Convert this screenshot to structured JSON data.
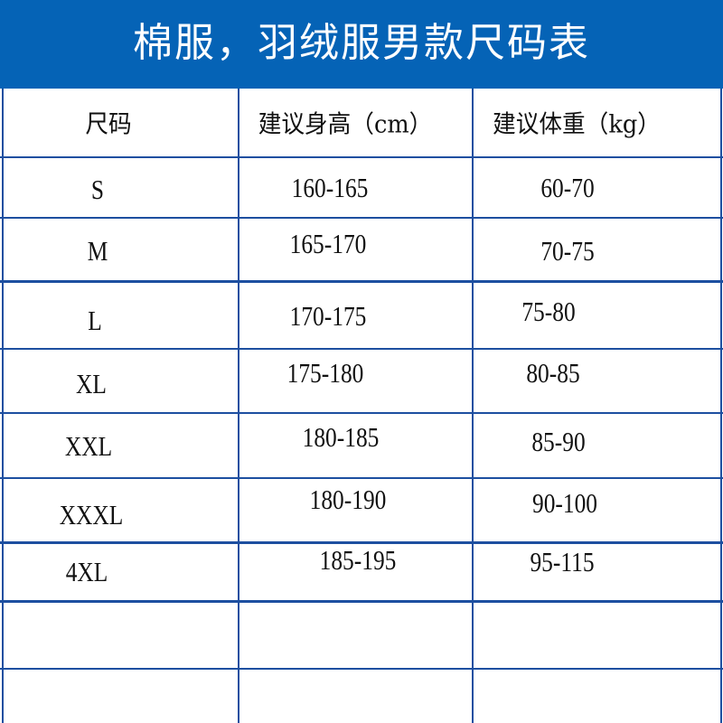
{
  "title": "棉服，羽绒服男款尺码表",
  "headers": [
    "尺码",
    "建议身高（cm）",
    "建议体重（kg）"
  ],
  "rows": [
    [
      "S",
      "160-165",
      "60-70"
    ],
    [
      "M",
      "165-170",
      "70-75"
    ],
    [
      "L",
      "170-175",
      "75-80"
    ],
    [
      "XL",
      "175-180",
      "80-85"
    ],
    [
      "XXL",
      "180-185",
      "85-90"
    ],
    [
      "XXXL",
      "180-190",
      "90-100"
    ],
    [
      "4XL",
      "185-195",
      "95-115"
    ],
    [
      "",
      "",
      ""
    ],
    [
      "",
      "",
      ""
    ]
  ],
  "colors": {
    "banner": "#0563b6",
    "grid": "#1d4fa0"
  }
}
